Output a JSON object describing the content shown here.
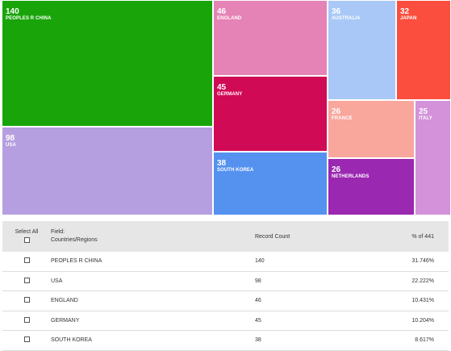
{
  "treemap": {
    "tiles": [
      {
        "value": "140",
        "label": "PEOPLES R CHINA",
        "color": "#19a50a"
      },
      {
        "value": "98",
        "label": "USA",
        "color": "#b59fe0"
      },
      {
        "value": "46",
        "label": "ENGLAND",
        "color": "#e583b6"
      },
      {
        "value": "45",
        "label": "GERMANY",
        "color": "#d10a56"
      },
      {
        "value": "38",
        "label": "SOUTH KOREA",
        "color": "#5592f0"
      },
      {
        "value": "36",
        "label": "AUSTRALIA",
        "color": "#a9c8f7"
      },
      {
        "value": "32",
        "label": "JAPAN",
        "color": "#fb4e3e"
      },
      {
        "value": "26",
        "label": "FRANCE",
        "color": "#f9a69d"
      },
      {
        "value": "26",
        "label": "NETHERLANDS",
        "color": "#9a28b0"
      },
      {
        "value": "25",
        "label": "ITALY",
        "color": "#d392d9"
      }
    ]
  },
  "table": {
    "select_all_label": "Select All",
    "field_label": "Field:",
    "field_name": "Countries/Regions",
    "record_count_label": "Record Count",
    "percent_label": "% of 441",
    "rows": [
      {
        "name": "PEOPLES R CHINA",
        "count": "140",
        "percent": "31.746%"
      },
      {
        "name": "USA",
        "count": "98",
        "percent": "22.222%"
      },
      {
        "name": "ENGLAND",
        "count": "46",
        "percent": "10.431%"
      },
      {
        "name": "GERMANY",
        "count": "45",
        "percent": "10.204%"
      },
      {
        "name": "SOUTH KOREA",
        "count": "38",
        "percent": "8.617%"
      }
    ]
  }
}
